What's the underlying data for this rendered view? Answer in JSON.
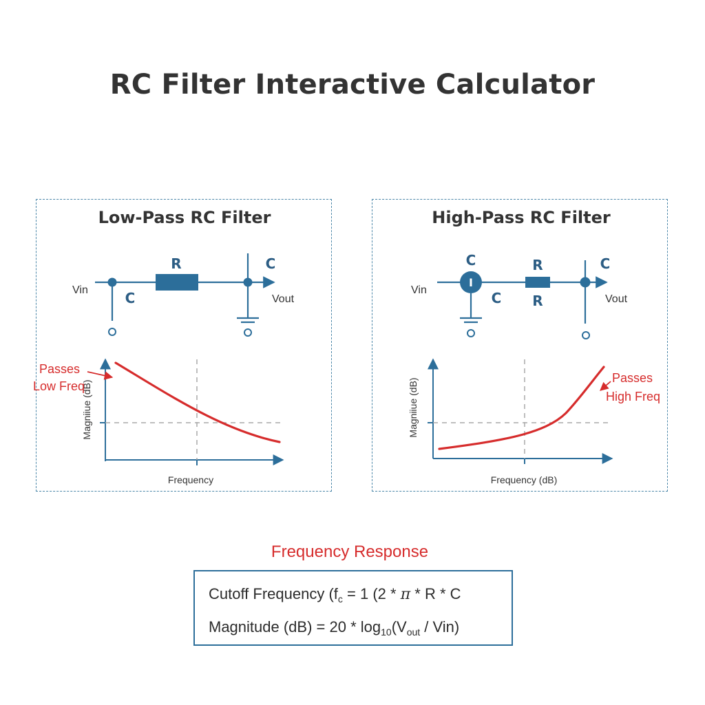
{
  "title": "RC Filter Interactive Calculator",
  "panels": {
    "lowpass": {
      "title": "Low-Pass RC Filter",
      "labels": {
        "resistor": "R",
        "capacitor_left": "C",
        "capacitor_right": "C",
        "vin": "Vin",
        "vout": "Vout"
      },
      "graph": {
        "ylabel": "Magniiue (dB)",
        "xlabel": "Frequency",
        "annotation_line1": "Passes",
        "annotation_line2": "Low Freq"
      }
    },
    "highpass": {
      "title": "High-Pass RC Filter",
      "labels": {
        "capacitor_top": "C",
        "capacitor_bottom": "C",
        "resistor_top": "R",
        "resistor_bottom": "R",
        "capacitor_right": "C",
        "source_symbol": "I",
        "vin": "Vin",
        "vout": "Vout"
      },
      "graph": {
        "ylabel": "Magniiue (dB)",
        "xlabel": "Frequency (dB)",
        "annotation_line1": "Passes",
        "annotation_line2": "High Freq"
      }
    }
  },
  "formulas": {
    "heading": "Frequency Response",
    "cutoff": {
      "prefix": "Cutoff Frequency (f",
      "sub": "c",
      "mid": " = 1 (2 * ",
      "pi": "π",
      "suffix": " * R * C"
    },
    "magnitude": {
      "prefix": "Magnitude (dB) = 20 * log",
      "log_sub": "10",
      "paren": "(V",
      "out_sub": "out",
      "suffix": " / Vin)"
    }
  },
  "colors": {
    "accent_blue": "#2c6e9a",
    "component_blue": "#2c5d84",
    "curve_red": "#d62c2c",
    "guide_gray": "#a9a9a9"
  }
}
